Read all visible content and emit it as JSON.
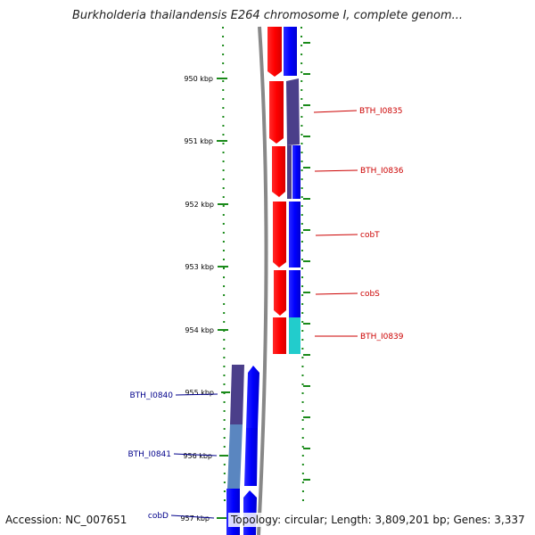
{
  "title": "Burkholderia thailandensis E264 chromosome I, complete genom...",
  "footer": {
    "accession": "Accession: NC_007651",
    "info": "Topology: circular; Length: 3,809,201 bp; Genes: 3,337"
  },
  "ruler": {
    "ticks": [
      "950 kbp",
      "951 kbp",
      "952 kbp",
      "953 kbp",
      "954 kbp",
      "955 kbp",
      "956 kbp",
      "957 kbp"
    ]
  },
  "genes_right": [
    {
      "label": "BTH_I0835",
      "color": "#cc0000"
    },
    {
      "label": "BTH_I0836",
      "color": "#cc0000"
    },
    {
      "label": "cobT",
      "color": "#cc0000"
    },
    {
      "label": "cobS",
      "color": "#cc0000"
    },
    {
      "label": "BTH_I0839",
      "color": "#cc0000"
    }
  ],
  "genes_left": [
    {
      "label": "BTH_I0840",
      "color": "#00008b"
    },
    {
      "label": "BTH_I0841",
      "color": "#00008b"
    },
    {
      "label": "cobD",
      "color": "#00008b"
    }
  ],
  "colors": {
    "forward": "#ff0000",
    "reverse": "#0000ff",
    "cog_purple": "#4b3f8a",
    "cyan": "#22cccc",
    "tick_green": "#1a8a1a",
    "backbone": "#888888"
  }
}
